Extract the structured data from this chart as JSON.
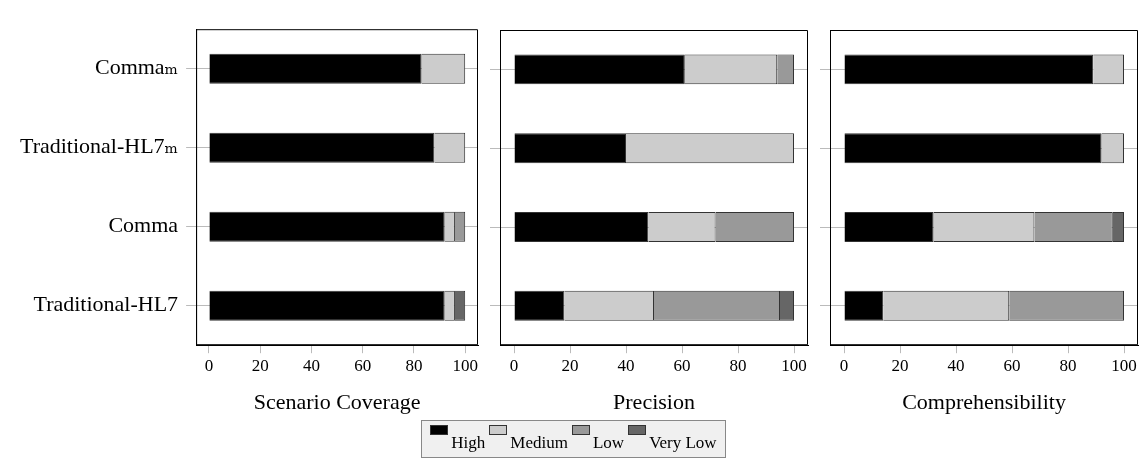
{
  "chart_data": [
    {
      "type": "bar",
      "orientation": "horizontal",
      "stacked": true,
      "xlabel": "Scenario Coverage",
      "categories": [
        "Commaₘ",
        "Traditional-HL7ₘ",
        "Comma",
        "Traditional-HL7"
      ],
      "xlim": [
        -5,
        105
      ],
      "xticks": [
        0,
        20,
        40,
        60,
        80,
        100
      ],
      "grid": "y",
      "legend": "bottom",
      "series": [
        {
          "name": "High",
          "color": "#000000",
          "values": [
            83,
            88,
            92,
            92
          ]
        },
        {
          "name": "Medium",
          "color": "#cccccc",
          "values": [
            17,
            12,
            4,
            4
          ]
        },
        {
          "name": "Low",
          "color": "#999999",
          "values": [
            0,
            0,
            4,
            0
          ]
        },
        {
          "name": "Very Low",
          "color": "#666666",
          "values": [
            0,
            0,
            0,
            4
          ]
        }
      ]
    },
    {
      "type": "bar",
      "orientation": "horizontal",
      "stacked": true,
      "xlabel": "Precision",
      "categories": [
        null,
        null,
        null,
        null
      ],
      "xlim": [
        -5,
        105
      ],
      "xticks": [
        0,
        20,
        40,
        60,
        80,
        100
      ],
      "grid": "y",
      "tick_labels": "x",
      "series": [
        {
          "color": "#000000",
          "values": [
            61,
            40,
            48,
            18
          ]
        },
        {
          "color": "#cccccc",
          "values": [
            33,
            60,
            24,
            32
          ]
        },
        {
          "color": "#999999",
          "values": [
            6,
            0,
            28,
            45
          ]
        },
        {
          "color": "#666666",
          "values": [
            0,
            0,
            0,
            5
          ]
        }
      ]
    },
    {
      "type": "bar",
      "orientation": "horizontal",
      "stacked": true,
      "xlabel": "Comprehensibility",
      "categories": [
        null,
        null,
        null,
        null
      ],
      "xlim": [
        -5,
        105
      ],
      "xticks": [
        0,
        20,
        40,
        60,
        80,
        100
      ],
      "grid": "y",
      "tick_labels": "x",
      "series": [
        {
          "color": "#000000",
          "values": [
            89,
            92,
            32,
            14
          ]
        },
        {
          "color": "#cccccc",
          "values": [
            11,
            8,
            36,
            45
          ]
        },
        {
          "color": "#999999",
          "values": [
            0,
            0,
            28,
            41
          ]
        },
        {
          "color": "#666666",
          "values": [
            0,
            0,
            4,
            0
          ]
        }
      ]
    }
  ]
}
